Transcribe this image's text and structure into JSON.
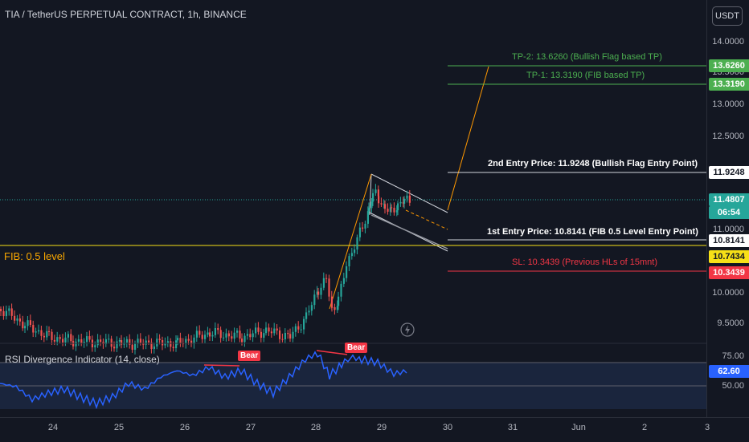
{
  "header": {
    "title": "TIA / TetherUS PERPETUAL CONTRACT, 1h, BINANCE",
    "currency": "USDT"
  },
  "price_axis": {
    "ticks": [
      "14.0000",
      "13.5000",
      "13.0000",
      "12.5000",
      "11.5000",
      "11.0000",
      "10.0000",
      "9.5000"
    ]
  },
  "price_tags": {
    "tp2": "13.6260",
    "tp1": "13.3190",
    "entry2": "11.9248",
    "current": "11.4807",
    "countdown": "06:54",
    "entry1": "10.8141",
    "fib": "10.7434",
    "sl": "10.3439"
  },
  "annotations": {
    "tp2": "TP-2: 13.6260 (Bullish Flag based TP)",
    "tp1": "TP-1: 13.3190 (FIB based TP)",
    "entry2": "2nd Entry Price: 11.9248 (Bullish Flag Entry Point)",
    "entry1": "1st Entry Price: 10.8141 (FIB 0.5 Level Entry Point)",
    "sl": "SL: 10.3439 (Previous HLs of 15mnt)",
    "fib": "FIB: 0.5 level"
  },
  "rsi": {
    "label": "RSI Divergence Indicator (14, close)",
    "ticks": [
      "75.00",
      "50.00"
    ],
    "current": "62.60",
    "bear1": "Bear",
    "bear2": "Bear"
  },
  "time_axis": [
    "24",
    "25",
    "26",
    "27",
    "28",
    "29",
    "30",
    "31",
    "Jun",
    "2",
    "3"
  ],
  "colors": {
    "up": "#26a69a",
    "down": "#ef5350",
    "rsi": "#2962ff",
    "fib": "#f7e017",
    "tp": "#4caf50",
    "sl": "#f23645"
  }
}
